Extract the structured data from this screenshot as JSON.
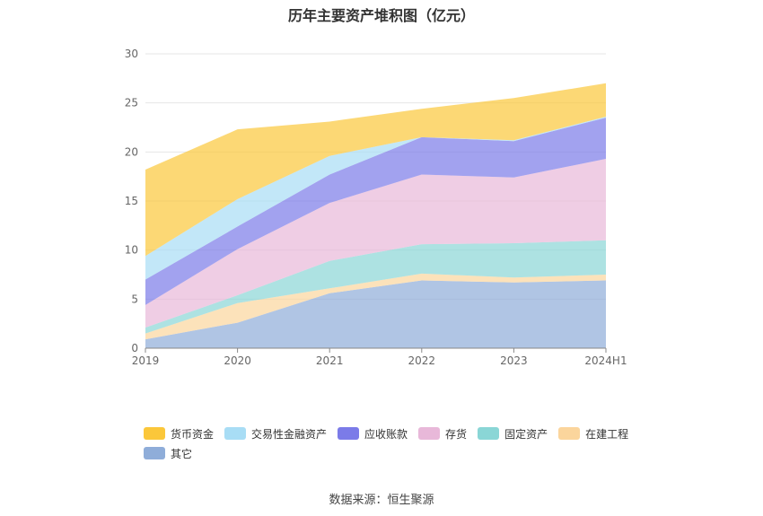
{
  "chart_data": {
    "type": "area",
    "stacked": true,
    "title": "历年主要资产堆积图（亿元）",
    "categories": [
      "2019",
      "2020",
      "2021",
      "2022",
      "2023",
      "2024H1"
    ],
    "ylim": [
      0,
      30
    ],
    "yticks": [
      0,
      5,
      10,
      15,
      20,
      25,
      30
    ],
    "grid": true,
    "legend_position": "bottom",
    "series": [
      {
        "name": "其它",
        "color": "#8fadd9",
        "values": [
          0.9,
          2.6,
          5.6,
          6.9,
          6.7,
          6.9
        ]
      },
      {
        "name": "在建工程",
        "color": "#fbd59c",
        "values": [
          0.6,
          2.0,
          0.5,
          0.7,
          0.5,
          0.6
        ]
      },
      {
        "name": "固定资产",
        "color": "#8ad6d6",
        "values": [
          0.6,
          0.8,
          2.8,
          3.0,
          3.5,
          3.5
        ]
      },
      {
        "name": "存货",
        "color": "#e8b8d9",
        "values": [
          2.3,
          4.7,
          5.9,
          7.1,
          6.7,
          8.3
        ]
      },
      {
        "name": "应收账款",
        "color": "#7b7be8",
        "values": [
          2.6,
          2.3,
          2.9,
          3.8,
          3.7,
          4.2
        ]
      },
      {
        "name": "交易性金融资产",
        "color": "#a8ddf5",
        "values": [
          2.4,
          2.8,
          1.9,
          0.0,
          0.1,
          0.1
        ]
      },
      {
        "name": "货币资金",
        "color": "#fbc73a",
        "values": [
          8.8,
          7.1,
          3.5,
          2.9,
          4.3,
          3.4
        ]
      }
    ],
    "legend_order": [
      "货币资金",
      "交易性金融资产",
      "应收账款",
      "存货",
      "固定资产",
      "在建工程",
      "其它"
    ]
  },
  "source": "数据来源：恒生聚源"
}
